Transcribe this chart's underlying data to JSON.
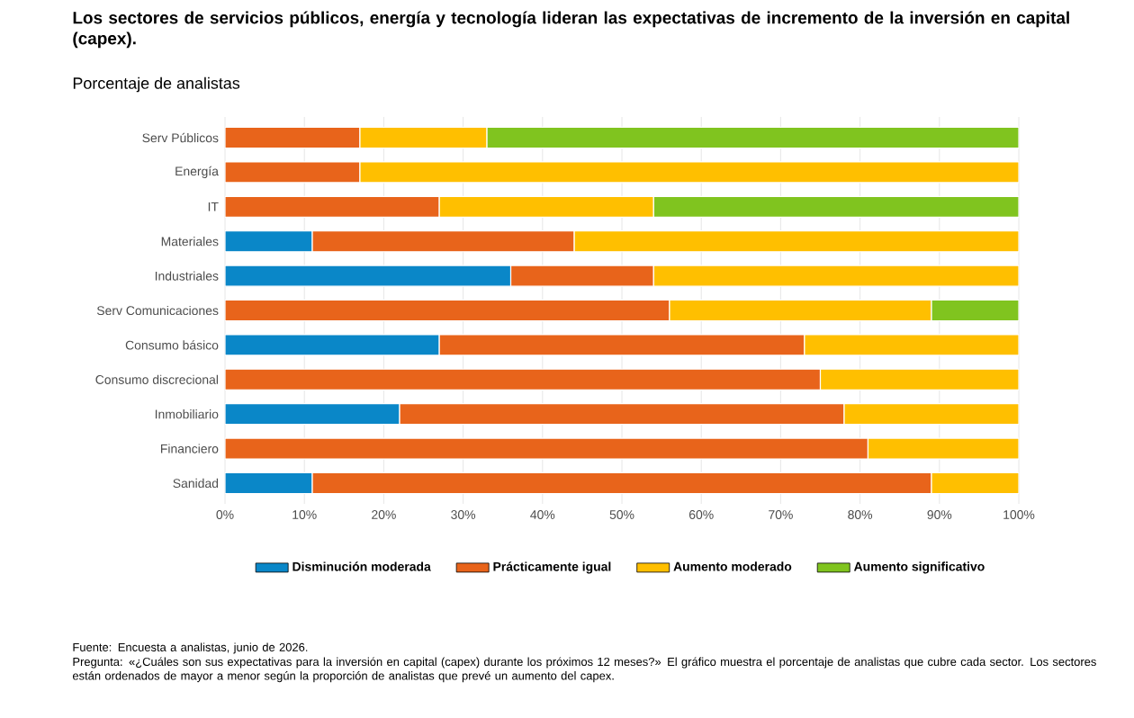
{
  "chart_data": {
    "type": "bar",
    "orientation": "horizontal",
    "stacked": true,
    "title": "Los sectores de servicios públicos, energía y tecnología lideran las expectativas de incremento de la inversión en capital (capex).",
    "subtitle": "Porcentaje de analistas",
    "categories": [
      "Serv Públicos",
      "Energía",
      "IT",
      "Materiales",
      "Industriales",
      "Serv Comunicaciones",
      "Consumo básico",
      "Consumo discrecional",
      "Inmobiliario",
      "Financiero",
      "Sanidad"
    ],
    "series": [
      {
        "name": "Disminución moderada",
        "color": "#0a87c8",
        "values": [
          0,
          0,
          0,
          11,
          36,
          0,
          27,
          0,
          22,
          0,
          11
        ]
      },
      {
        "name": "Prácticamente igual",
        "color": "#e8641b",
        "values": [
          17,
          17,
          27,
          33,
          18,
          56,
          46,
          75,
          56,
          81,
          78
        ]
      },
      {
        "name": "Aumento moderado",
        "color": "#ffbf00",
        "values": [
          16,
          83,
          27,
          56,
          46,
          33,
          27,
          25,
          22,
          19,
          11
        ]
      },
      {
        "name": "Aumento significativo",
        "color": "#80c41f",
        "values": [
          67,
          0,
          46,
          0,
          0,
          11,
          0,
          0,
          0,
          0,
          0
        ]
      }
    ],
    "xlim": [
      0,
      100
    ],
    "xticks": [
      {
        "value": 0,
        "label": "0%"
      },
      {
        "value": 10,
        "label": "10%"
      },
      {
        "value": 20,
        "label": "20%"
      },
      {
        "value": 30,
        "label": "30%"
      },
      {
        "value": 40,
        "label": "40%"
      },
      {
        "value": 50,
        "label": "50%"
      },
      {
        "value": 60,
        "label": "60%"
      },
      {
        "value": 70,
        "label": "70%"
      },
      {
        "value": 80,
        "label": "80%"
      },
      {
        "value": 90,
        "label": "90%"
      },
      {
        "value": 100,
        "label": "100%"
      }
    ],
    "grid": "x",
    "legend": "bottom",
    "annotations": [
      "Fuente: Encuesta a analistas, junio de 2026.",
      "Pregunta: «¿Cuáles son sus expectativas para la inversión en capital (capex) durante los próximos 12 meses?» El gráfico muestra el porcentaje de analistas que cubre cada sector. Los sectores están ordenados de mayor a menor según la proporción de analistas que prevé un aumento del capex."
    ]
  }
}
